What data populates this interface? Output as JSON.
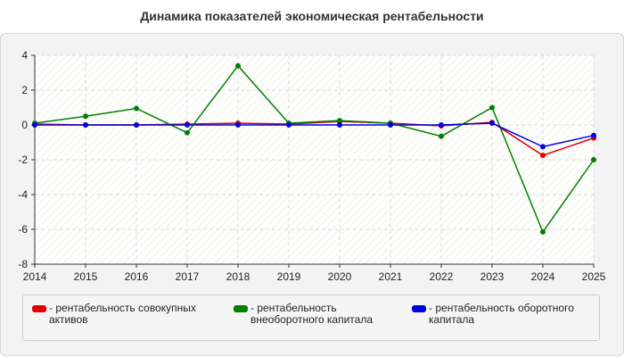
{
  "title": "Динамика показателей экономическая рентабельности",
  "chart_data": {
    "type": "line",
    "x": [
      "2014",
      "2015",
      "2016",
      "2017",
      "2018",
      "2019",
      "2020",
      "2021",
      "2022",
      "2023",
      "2024",
      "2025"
    ],
    "ylim": [
      -8,
      4
    ],
    "yticks": [
      4,
      2,
      0,
      -2,
      -4,
      -6,
      -8
    ],
    "grid": true,
    "legend_position": "bottom",
    "series": [
      {
        "name": "рентабельность совокупных активов",
        "color": "#e00000",
        "values": [
          0.05,
          0.0,
          0.0,
          0.05,
          0.1,
          0.05,
          0.2,
          0.1,
          -0.05,
          0.15,
          -1.75,
          -0.75
        ]
      },
      {
        "name": "рентабельность внеоборотного капитала",
        "color": "#008000",
        "values": [
          0.1,
          0.5,
          0.95,
          -0.45,
          3.4,
          0.1,
          0.25,
          0.1,
          -0.65,
          1.0,
          -6.15,
          -2.0
        ]
      },
      {
        "name": "рентабельность оборотного капитала",
        "color": "#0000e0",
        "values": [
          0.0,
          0.0,
          0.0,
          0.0,
          0.0,
          0.0,
          0.0,
          0.0,
          0.0,
          0.1,
          -1.25,
          -0.6
        ]
      }
    ]
  }
}
